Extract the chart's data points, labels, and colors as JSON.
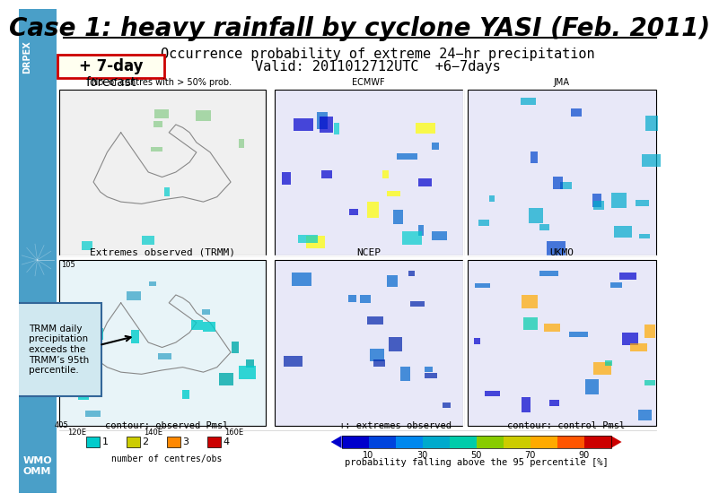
{
  "title": "Case 1: heavy rainfall by cyclone YASI (Feb. 2011)",
  "title_fontsize": 20,
  "title_color": "#000000",
  "bg_color": "#ffffff",
  "left_panel_bg": "#cce8f4",
  "header_line1": "Occurrence probability of extreme 24−hr precipitation",
  "header_line2": "Valid: 2011012712UTC  +6−7days",
  "box_label": "+ 7-day",
  "forecast_label": "forecast",
  "box_bg": "#fffff0",
  "box_border": "#cc0000",
  "panel_labels_top": [
    "No. of centres with > 50% prob.",
    "ECMWF",
    "JMA"
  ],
  "panel_labels_bottom": [
    "Extremes observed (TRMM)",
    "NCEP",
    "UKMO"
  ],
  "trmm_annotation": "TRMM daily\nprecipitation\nexceeds the\nTRMM’s 95th\npercentile.",
  "trmm_box_bg": "#d0e8f0",
  "left_sidebar_color": "#4a9fc8",
  "wmo_text": "WMO\nOMM",
  "wmo_color": "#ffffff",
  "legend_left_title": "contour: observed Pmsl",
  "legend_left_colors": [
    "#00cccc",
    "#cccc00",
    "#ff8800",
    "#cc0000"
  ],
  "legend_left_labels": [
    "1",
    "2",
    "3",
    "4"
  ],
  "legend_left_subtitle": "number of centres/obs",
  "legend_right_title1": "+: extremes observed",
  "legend_right_title2": "contour: control Pmsl",
  "legend_right_ticks": [
    "10",
    "30",
    "50",
    "70",
    "90"
  ],
  "legend_right_subtitle": "probability falling above the 95 percentile [%]",
  "header_fontsize": 11,
  "label_fontsize": 9,
  "annotation_fontsize": 8
}
